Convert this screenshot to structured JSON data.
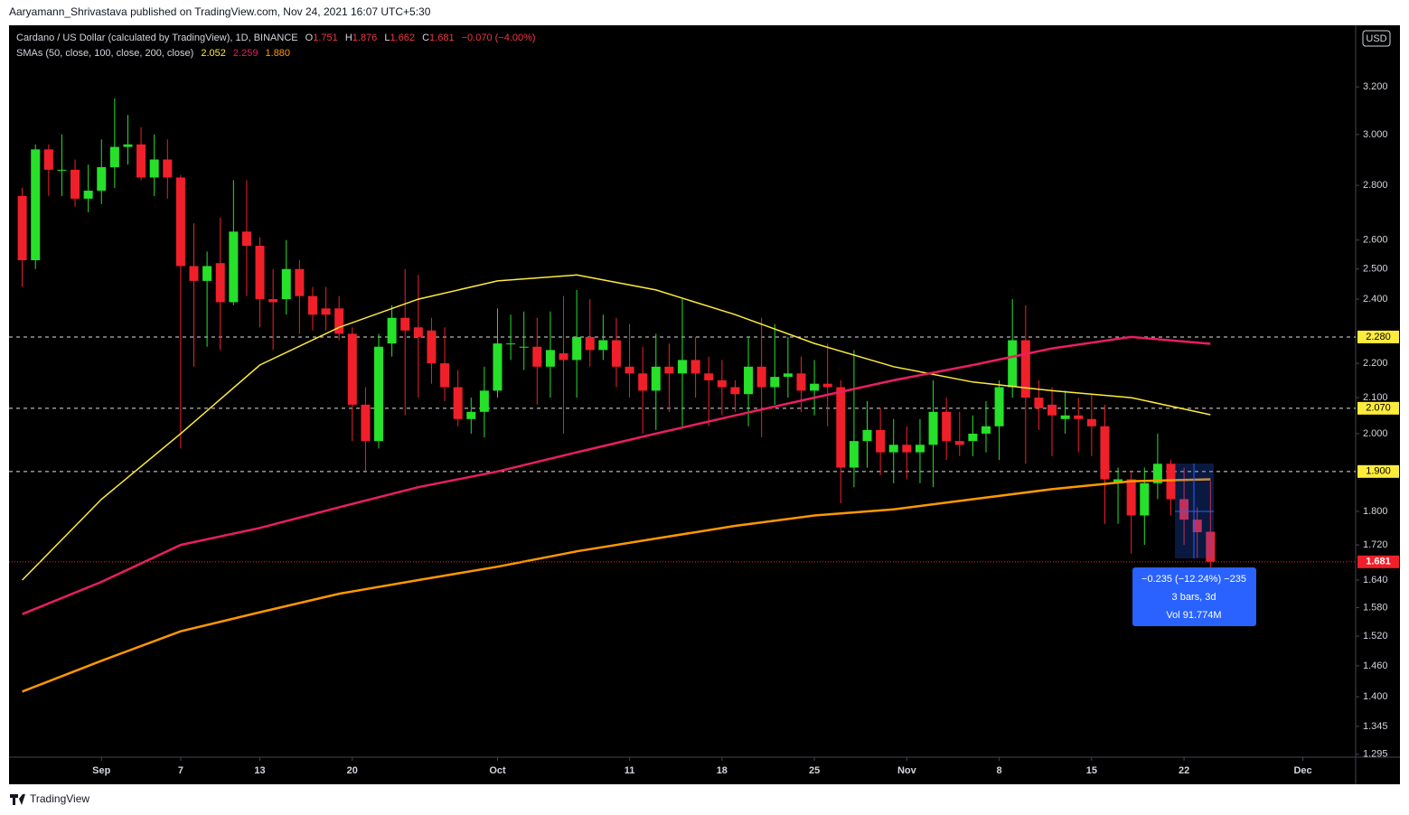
{
  "page": {
    "publisher": "Aaryamann_Shrivastava published on TradingView.com, Nov 24, 2021 16:07 UTC+5:30",
    "brand": "TradingView",
    "currency": "USD"
  },
  "chart_data": {
    "type": "candlestick",
    "title": "Cardano / US Dollar (calculated by TradingView), 1D, BINANCE",
    "readout": [
      {
        "label": "O",
        "value": "1.751"
      },
      {
        "label": "H",
        "value": "1.876"
      },
      {
        "label": "L",
        "value": "1.662"
      },
      {
        "label": "C",
        "value": "1.681"
      }
    ],
    "change": "−0.070 (−4.00%)",
    "indicator": "SMAs (50, close, 100, close, 200, close)",
    "x": [
      "2021-08-26",
      "2021-08-27",
      "2021-08-28",
      "2021-08-29",
      "2021-08-30",
      "2021-08-31",
      "2021-09-01",
      "2021-09-02",
      "2021-09-03",
      "2021-09-04",
      "2021-09-05",
      "2021-09-06",
      "2021-09-07",
      "2021-09-08",
      "2021-09-09",
      "2021-09-10",
      "2021-09-11",
      "2021-09-12",
      "2021-09-13",
      "2021-09-14",
      "2021-09-15",
      "2021-09-16",
      "2021-09-17",
      "2021-09-18",
      "2021-09-19",
      "2021-09-20",
      "2021-09-21",
      "2021-09-22",
      "2021-09-23",
      "2021-09-24",
      "2021-09-25",
      "2021-09-26",
      "2021-09-27",
      "2021-09-28",
      "2021-09-29",
      "2021-09-30",
      "2021-10-01",
      "2021-10-02",
      "2021-10-03",
      "2021-10-04",
      "2021-10-05",
      "2021-10-06",
      "2021-10-07",
      "2021-10-08",
      "2021-10-09",
      "2021-10-10",
      "2021-10-11",
      "2021-10-12",
      "2021-10-13",
      "2021-10-14",
      "2021-10-15",
      "2021-10-16",
      "2021-10-17",
      "2021-10-18",
      "2021-10-19",
      "2021-10-20",
      "2021-10-21",
      "2021-10-22",
      "2021-10-23",
      "2021-10-24",
      "2021-10-25",
      "2021-10-26",
      "2021-10-27",
      "2021-10-28",
      "2021-10-29",
      "2021-10-30",
      "2021-10-31",
      "2021-11-01",
      "2021-11-02",
      "2021-11-03",
      "2021-11-04",
      "2021-11-05",
      "2021-11-06",
      "2021-11-07",
      "2021-11-08",
      "2021-11-09",
      "2021-11-10",
      "2021-11-11",
      "2021-11-12",
      "2021-11-13",
      "2021-11-14",
      "2021-11-15",
      "2021-11-16",
      "2021-11-17",
      "2021-11-18",
      "2021-11-19",
      "2021-11-20",
      "2021-11-21",
      "2021-11-22",
      "2021-11-23",
      "2021-11-24"
    ],
    "open": [
      2.76,
      2.53,
      2.94,
      2.86,
      2.86,
      2.75,
      2.78,
      2.87,
      2.95,
      2.96,
      2.83,
      2.9,
      2.83,
      2.51,
      2.46,
      2.52,
      2.39,
      2.63,
      2.58,
      2.4,
      2.4,
      2.5,
      2.41,
      2.37,
      2.37,
      2.29,
      2.08,
      1.98,
      2.26,
      2.34,
      2.31,
      2.3,
      2.2,
      2.13,
      2.04,
      2.06,
      2.12,
      2.26,
      2.25,
      2.25,
      2.19,
      2.23,
      2.21,
      2.28,
      2.24,
      2.27,
      2.19,
      2.17,
      2.12,
      2.19,
      2.17,
      2.21,
      2.17,
      2.15,
      2.13,
      2.11,
      2.19,
      2.13,
      2.16,
      2.17,
      2.12,
      2.14,
      2.13,
      1.91,
      1.98,
      2.01,
      1.95,
      1.97,
      1.95,
      1.97,
      2.06,
      1.98,
      1.98,
      2.0,
      2.02,
      2.13,
      2.27,
      2.1,
      2.08,
      2.04,
      2.05,
      2.04,
      2.02,
      1.87,
      1.88,
      1.79,
      1.87,
      1.92,
      1.83,
      1.78,
      1.751
    ],
    "high": [
      2.79,
      2.96,
      2.96,
      3.0,
      2.9,
      2.88,
      2.98,
      3.15,
      3.08,
      3.03,
      3.0,
      2.98,
      2.84,
      2.66,
      2.56,
      2.68,
      2.82,
      2.82,
      2.61,
      2.5,
      2.6,
      2.53,
      2.44,
      2.44,
      2.41,
      2.31,
      2.13,
      2.29,
      2.38,
      2.5,
      2.48,
      2.34,
      2.31,
      2.18,
      2.1,
      2.19,
      2.37,
      2.35,
      2.36,
      2.34,
      2.36,
      2.41,
      2.43,
      2.4,
      2.35,
      2.34,
      2.32,
      2.25,
      2.29,
      2.26,
      2.4,
      2.28,
      2.22,
      2.21,
      2.15,
      2.28,
      2.34,
      2.32,
      2.28,
      2.22,
      2.21,
      2.26,
      2.15,
      2.24,
      2.09,
      2.07,
      2.04,
      2.02,
      2.04,
      2.15,
      2.1,
      2.06,
      2.05,
      2.09,
      2.15,
      2.4,
      2.38,
      2.15,
      2.13,
      2.12,
      2.1,
      2.11,
      2.08,
      1.91,
      1.9,
      1.91,
      2.0,
      1.93,
      1.91,
      1.81,
      1.876
    ],
    "low": [
      2.44,
      2.5,
      2.76,
      2.76,
      2.72,
      2.7,
      2.73,
      2.79,
      2.88,
      2.82,
      2.76,
      2.75,
      1.96,
      2.19,
      2.25,
      2.24,
      2.38,
      2.41,
      2.31,
      2.24,
      2.35,
      2.29,
      2.3,
      2.3,
      2.27,
      1.98,
      1.9,
      1.96,
      2.22,
      2.05,
      2.1,
      2.14,
      2.09,
      2.02,
      2.0,
      1.99,
      2.1,
      2.21,
      2.18,
      2.08,
      2.1,
      2.0,
      2.1,
      2.19,
      2.21,
      2.13,
      2.1,
      2.0,
      2.01,
      2.06,
      2.02,
      2.1,
      2.02,
      2.05,
      2.06,
      2.02,
      1.99,
      2.08,
      2.1,
      2.06,
      2.05,
      2.02,
      1.82,
      1.86,
      1.91,
      1.89,
      1.87,
      1.88,
      1.87,
      1.86,
      1.93,
      1.94,
      1.94,
      1.95,
      1.93,
      2.1,
      1.92,
      2.01,
      1.94,
      2.0,
      1.95,
      1.94,
      1.77,
      1.77,
      1.7,
      1.72,
      1.83,
      1.79,
      1.72,
      1.69,
      1.662
    ],
    "close": [
      2.53,
      2.94,
      2.86,
      2.86,
      2.75,
      2.78,
      2.87,
      2.95,
      2.96,
      2.83,
      2.9,
      2.83,
      2.51,
      2.46,
      2.51,
      2.39,
      2.63,
      2.58,
      2.4,
      2.39,
      2.5,
      2.41,
      2.35,
      2.35,
      2.29,
      2.08,
      1.98,
      2.25,
      2.34,
      2.3,
      2.28,
      2.2,
      2.13,
      2.04,
      2.06,
      2.12,
      2.26,
      2.26,
      2.25,
      2.19,
      2.24,
      2.21,
      2.28,
      2.24,
      2.27,
      2.19,
      2.17,
      2.12,
      2.19,
      2.17,
      2.21,
      2.17,
      2.15,
      2.13,
      2.11,
      2.19,
      2.13,
      2.16,
      2.17,
      2.12,
      2.14,
      2.13,
      1.91,
      1.98,
      2.01,
      1.95,
      1.97,
      1.95,
      1.97,
      2.06,
      1.98,
      1.97,
      2.0,
      2.02,
      2.13,
      2.27,
      2.1,
      2.07,
      2.05,
      2.05,
      2.04,
      2.02,
      1.88,
      1.88,
      1.79,
      1.87,
      1.92,
      1.83,
      1.78,
      1.75,
      1.681
    ],
    "up_color": "#26e02a",
    "down_color": "#f0202a",
    "sma": [
      {
        "color": "#ffeb3b",
        "last_label": "2.052",
        "x": [
          "2021-08-26",
          "2021-09-01",
          "2021-09-07",
          "2021-09-13",
          "2021-09-19",
          "2021-09-25",
          "2021-10-01",
          "2021-10-07",
          "2021-10-13",
          "2021-10-19",
          "2021-10-25",
          "2021-10-31",
          "2021-11-06",
          "2021-11-12",
          "2021-11-18",
          "2021-11-24"
        ],
        "values": [
          1.64,
          1.83,
          2.0,
          2.195,
          2.31,
          2.4,
          2.46,
          2.48,
          2.43,
          2.35,
          2.26,
          2.19,
          2.145,
          2.12,
          2.1,
          2.052
        ]
      },
      {
        "color": "#e91e63",
        "last_label": "2.259",
        "x": [
          "2021-08-26",
          "2021-09-01",
          "2021-09-07",
          "2021-09-13",
          "2021-09-19",
          "2021-09-25",
          "2021-10-01",
          "2021-10-07",
          "2021-10-13",
          "2021-10-19",
          "2021-10-25",
          "2021-10-31",
          "2021-11-06",
          "2021-11-12",
          "2021-11-18",
          "2021-11-24"
        ],
        "values": [
          1.566,
          1.636,
          1.72,
          1.76,
          1.81,
          1.86,
          1.9,
          1.95,
          2.0,
          2.05,
          2.1,
          2.15,
          2.195,
          2.245,
          2.28,
          2.259
        ]
      },
      {
        "color": "#ff9800",
        "last_label": "1.880",
        "x": [
          "2021-08-26",
          "2021-09-01",
          "2021-09-07",
          "2021-09-13",
          "2021-09-19",
          "2021-09-25",
          "2021-10-01",
          "2021-10-07",
          "2021-10-13",
          "2021-10-19",
          "2021-10-25",
          "2021-10-31",
          "2021-11-06",
          "2021-11-12",
          "2021-11-18",
          "2021-11-24"
        ],
        "values": [
          1.41,
          1.47,
          1.53,
          1.57,
          1.61,
          1.64,
          1.67,
          1.705,
          1.735,
          1.765,
          1.79,
          1.805,
          1.83,
          1.855,
          1.875,
          1.88
        ]
      }
    ],
    "hlines": [
      {
        "value": 2.28,
        "label": "2.280"
      },
      {
        "value": 2.07,
        "label": "2.070"
      },
      {
        "value": 1.9,
        "label": "1.900"
      }
    ],
    "hline_color": "#ffeb3b",
    "price_line": {
      "value": 1.681,
      "label": "1.681"
    },
    "log_scale": true,
    "xlim": [
      "2021-08-25",
      "2021-12-05"
    ],
    "ylim": [
      1.29,
      3.47
    ],
    "yticks": [
      {
        "value": 3.2,
        "label": "3.200"
      },
      {
        "value": 3.0,
        "label": "3.000"
      },
      {
        "value": 2.8,
        "label": "2.800"
      },
      {
        "value": 2.6,
        "label": "2.600"
      },
      {
        "value": 2.5,
        "label": "2.500"
      },
      {
        "value": 2.4,
        "label": "2.400"
      },
      {
        "value": 2.2,
        "label": "2.200"
      },
      {
        "value": 2.1,
        "label": "2.100"
      },
      {
        "value": 2.0,
        "label": "2.000"
      },
      {
        "value": 1.8,
        "label": "1.800"
      },
      {
        "value": 1.72,
        "label": "1.720"
      },
      {
        "value": 1.64,
        "label": "1.640"
      },
      {
        "value": 1.58,
        "label": "1.580"
      },
      {
        "value": 1.52,
        "label": "1.520"
      },
      {
        "value": 1.46,
        "label": "1.460"
      },
      {
        "value": 1.4,
        "label": "1.400"
      },
      {
        "value": 1.345,
        "label": "1.345"
      },
      {
        "value": 1.295,
        "label": "1.295"
      }
    ],
    "xticks": [
      {
        "value": "2021-09-01",
        "label": "Sep"
      },
      {
        "value": "2021-09-07",
        "label": "7"
      },
      {
        "value": "2021-09-13",
        "label": "13"
      },
      {
        "value": "2021-09-20",
        "label": "20"
      },
      {
        "value": "2021-10-01",
        "label": "Oct"
      },
      {
        "value": "2021-10-11",
        "label": "11"
      },
      {
        "value": "2021-10-18",
        "label": "18"
      },
      {
        "value": "2021-10-25",
        "label": "25"
      },
      {
        "value": "2021-11-01",
        "label": "Nov"
      },
      {
        "value": "2021-11-08",
        "label": "8"
      },
      {
        "value": "2021-11-15",
        "label": "15"
      },
      {
        "value": "2021-11-22",
        "label": "22"
      },
      {
        "value": "2021-12-01",
        "label": "Dec"
      }
    ],
    "measure": [
      "−0.235 (−12.24%) −235",
      "3 bars, 3d",
      "Vol 91.774M"
    ]
  }
}
